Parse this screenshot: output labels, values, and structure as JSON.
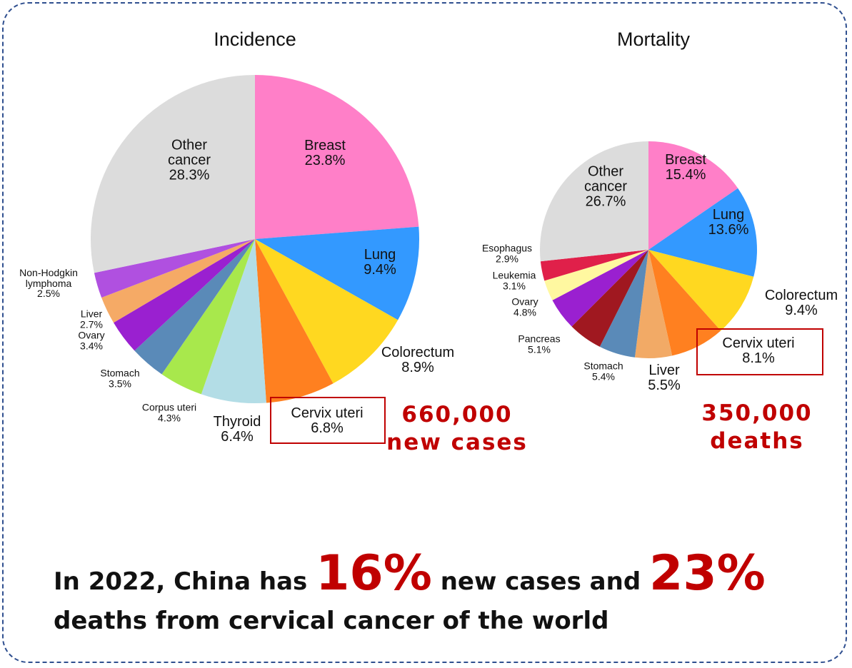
{
  "chart_data": [
    {
      "type": "pie",
      "title": "Incidence",
      "categories": [
        "Breast",
        "Lung",
        "Colorectum",
        "Cervix uteri",
        "Thyroid",
        "Corpus uteri",
        "Stomach",
        "Ovary",
        "Liver",
        "Non-Hodgkin\nlymphoma",
        "Other\ncancer"
      ],
      "values": [
        23.8,
        9.4,
        8.9,
        6.8,
        6.4,
        4.3,
        3.5,
        3.4,
        2.7,
        2.5,
        28.3
      ],
      "value_labels": [
        "23.8%",
        "9.4%",
        "8.9%",
        "6.8%",
        "6.4%",
        "4.3%",
        "3.5%",
        "3.4%",
        "2.7%",
        "2.5%",
        "28.3%"
      ],
      "colors": [
        "#ff7fc8",
        "#3399ff",
        "#ffd820",
        "#ff8020",
        "#b3dde6",
        "#a8e84c",
        "#5a8ab8",
        "#9a20d0",
        "#f5aa66",
        "#b050e0",
        "#dcdcdc"
      ],
      "annotation": "660,000\nnew cases"
    },
    {
      "type": "pie",
      "title": "Mortality",
      "categories": [
        "Breast",
        "Lung",
        "Colorectum",
        "Cervix uteri",
        "Liver",
        "Stomach",
        "Pancreas",
        "Ovary",
        "Leukemia",
        "Esophagus",
        "Other\ncancer"
      ],
      "values": [
        15.4,
        13.6,
        9.4,
        8.1,
        5.5,
        5.4,
        5.1,
        4.8,
        3.1,
        2.9,
        26.7
      ],
      "value_labels": [
        "15.4%",
        "13.6%",
        "9.4%",
        "8.1%",
        "5.5%",
        "5.4%",
        "5.1%",
        "4.8%",
        "3.1%",
        "2.9%",
        "26.7%"
      ],
      "colors": [
        "#ff7fc8",
        "#3399ff",
        "#ffd820",
        "#ff8020",
        "#f2aa66",
        "#5a8ab8",
        "#a01820",
        "#9a20d0",
        "#fff8a0",
        "#e0204a",
        "#dcdcdc"
      ],
      "annotation": "350,000\ndeaths"
    }
  ],
  "caption": {
    "parts": [
      "In 2022, China has ",
      "16%",
      " new cases and ",
      "23%"
    ],
    "line2": "deaths from cervical cancer of the world"
  }
}
